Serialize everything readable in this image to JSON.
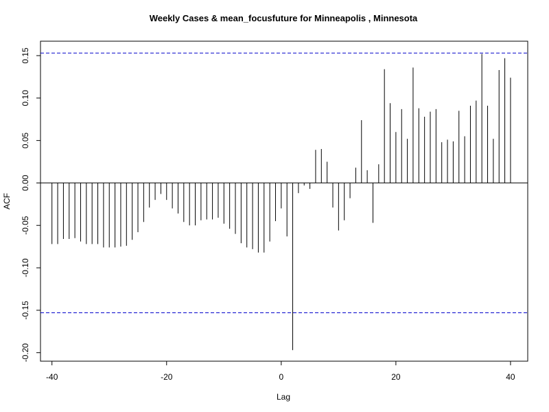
{
  "chart_data": {
    "type": "bar",
    "title": "Weekly Cases & mean_focusfuture for Minneapolis , Minnesota",
    "xlabel": "Lag",
    "ylabel": "ACF",
    "xlim": [
      -42,
      43
    ],
    "ylim": [
      -0.21,
      0.167
    ],
    "x_ticks": [
      -40,
      -20,
      0,
      20,
      40
    ],
    "x_tick_labels": [
      "-40",
      "-20",
      "0",
      "20",
      "40"
    ],
    "y_ticks": [
      -0.2,
      -0.15,
      -0.1,
      -0.05,
      0.0,
      0.05,
      0.1,
      0.15
    ],
    "y_tick_labels": [
      "-0.20",
      "-0.15",
      "-0.10",
      "-0.05",
      "0.00",
      "0.05",
      "0.10",
      "0.15"
    ],
    "confidence_bound": 0.153,
    "confidence_color": "#0000cc",
    "series": [
      {
        "lags": [
          -40,
          -39,
          -38,
          -37,
          -36,
          -35,
          -34,
          -33,
          -32,
          -31,
          -30,
          -29,
          -28,
          -27,
          -26,
          -25,
          -24,
          -23,
          -22,
          -21,
          -20,
          -19,
          -18,
          -17,
          -16,
          -15,
          -14,
          -13,
          -12,
          -11,
          -10,
          -9,
          -8,
          -7,
          -6,
          -5,
          -4,
          -3,
          -2,
          -1,
          0,
          1,
          2,
          3,
          4,
          5,
          6,
          7,
          8,
          9,
          10,
          11,
          12,
          13,
          14,
          15,
          16,
          17,
          18,
          19,
          20,
          21,
          22,
          23,
          24,
          25,
          26,
          27,
          28,
          29,
          30,
          31,
          32,
          33,
          34,
          35,
          36,
          37,
          38,
          39,
          40
        ],
        "values": [
          -0.072,
          -0.072,
          -0.066,
          -0.066,
          -0.065,
          -0.069,
          -0.072,
          -0.072,
          -0.072,
          -0.076,
          -0.076,
          -0.076,
          -0.075,
          -0.074,
          -0.067,
          -0.058,
          -0.046,
          -0.029,
          -0.02,
          -0.013,
          -0.02,
          -0.03,
          -0.036,
          -0.046,
          -0.05,
          -0.05,
          -0.044,
          -0.043,
          -0.043,
          -0.041,
          -0.048,
          -0.054,
          -0.06,
          -0.071,
          -0.076,
          -0.078,
          -0.082,
          -0.082,
          -0.069,
          -0.045,
          -0.03,
          -0.063,
          -0.197,
          -0.012,
          -0.003,
          -0.007,
          0.039,
          0.04,
          0.025,
          -0.029,
          -0.056,
          -0.044,
          -0.018,
          0.018,
          0.074,
          0.015,
          -0.047,
          0.022,
          0.134,
          0.094,
          0.06,
          0.087,
          0.052,
          0.136,
          0.088,
          0.078,
          0.084,
          0.087,
          0.048,
          0.051,
          0.049,
          0.085,
          0.055,
          0.091,
          0.097,
          0.152,
          0.091,
          0.052,
          0.133,
          0.147,
          0.124
        ]
      }
    ]
  }
}
